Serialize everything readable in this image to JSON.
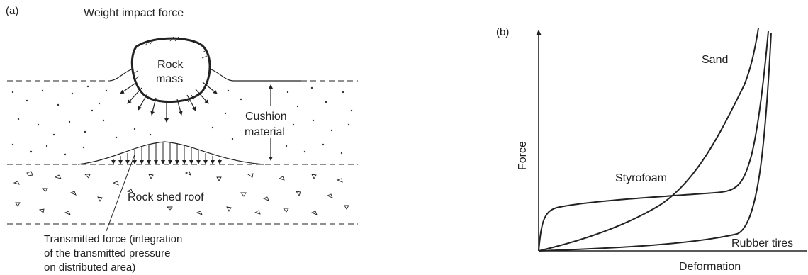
{
  "panel_a": {
    "tag": "(a)",
    "impact_label": "Weight impact force",
    "rock_label_1": "Rock",
    "rock_label_2": "mass",
    "cushion_label_1": "Cushion",
    "cushion_label_2": "material",
    "roof_label": "Rock shed roof",
    "transmitted_1": "Transmitted force (integration",
    "transmitted_2": "of the transmitted pressure",
    "transmitted_3": "on distributed area)"
  },
  "panel_b": {
    "tag": "(b)",
    "ylabel": "Force",
    "xlabel": "Deformation",
    "curves": [
      {
        "name": "Sand"
      },
      {
        "name": "Styrofoam"
      },
      {
        "name": "Rubber tires"
      }
    ]
  }
}
